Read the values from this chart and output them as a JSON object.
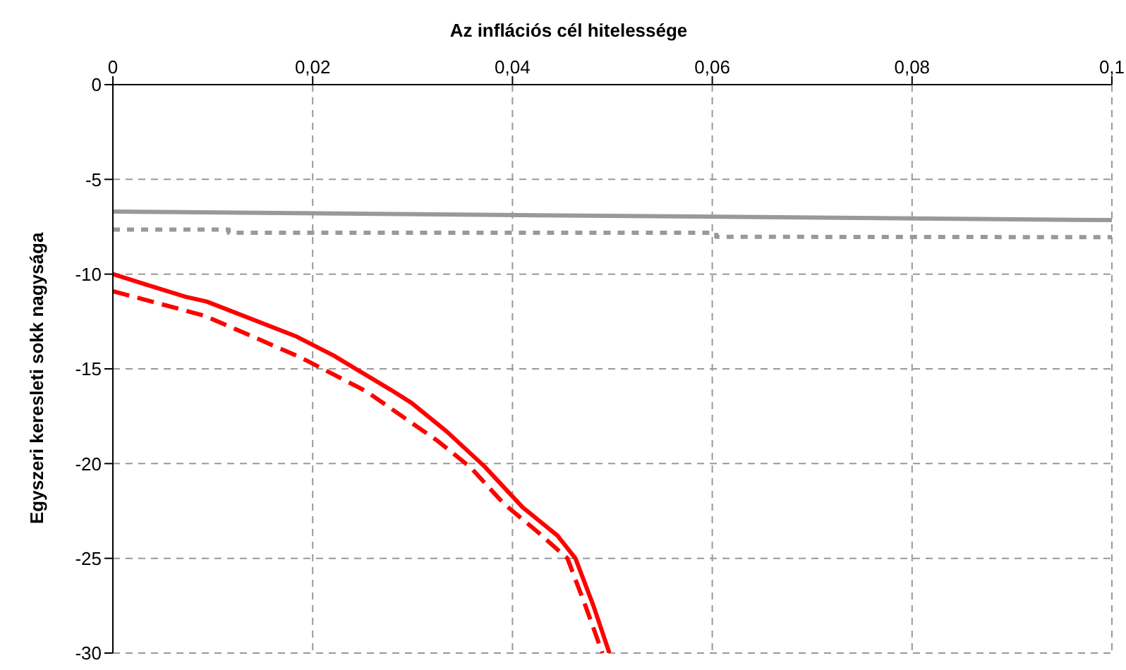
{
  "chart_data": {
    "type": "line",
    "title": "Az inflációs cél hitelessége",
    "ylabel": "Egyszeri keresleti sokk nagysága",
    "xlim": [
      0,
      0.1
    ],
    "xticks": [
      0,
      {
        "value": 0.02,
        "label": "0,02"
      },
      {
        "value": 0.04,
        "label": "0,04"
      },
      {
        "value": 0.06,
        "label": "0,06"
      },
      {
        "value": 0.08,
        "label": "0,08"
      },
      {
        "value": 0.1,
        "label": "0,1"
      }
    ],
    "ylim": [
      -30,
      0
    ],
    "yticks": [
      -30,
      -25,
      -20,
      -15,
      -10,
      -5,
      0
    ],
    "grid": true,
    "marker": "none",
    "series": [
      {
        "color": "#999999",
        "line_style": "solid",
        "x": [
          0,
          0.1
        ],
        "values": [
          -6.7,
          -7.15
        ]
      },
      {
        "color": "#999999",
        "line_style": "dotted",
        "x": [
          0,
          0.0116,
          0.0116,
          0.0604,
          0.0604,
          0.1
        ],
        "values": [
          -7.65,
          -7.65,
          -7.82,
          -7.82,
          -8.03,
          -8.05
        ]
      },
      {
        "color": "#ff0000",
        "line_style": "solid",
        "x": [
          0,
          0.0033,
          0.0073,
          0.0094,
          0.0184,
          0.0221,
          0.0278,
          0.0299,
          0.0334,
          0.0372,
          0.041,
          0.0445,
          0.0463,
          0.0481,
          0.0497
        ],
        "values": [
          -10,
          -10.55,
          -11.2,
          -11.45,
          -13.3,
          -14.3,
          -16.1,
          -16.8,
          -18.3,
          -20.15,
          -22.3,
          -23.8,
          -25,
          -27.5,
          -30
        ]
      },
      {
        "color": "#ff0000",
        "line_style": "dashed",
        "x": [
          0,
          0.0092,
          0.0188,
          0.0254,
          0.0325,
          0.0358,
          0.0391,
          0.0425,
          0.0455,
          0.0473,
          0.049
        ],
        "values": [
          -10.9,
          -12.2,
          -14.4,
          -16.2,
          -18.8,
          -20.2,
          -22.1,
          -23.6,
          -25,
          -27.5,
          -30
        ]
      }
    ]
  }
}
